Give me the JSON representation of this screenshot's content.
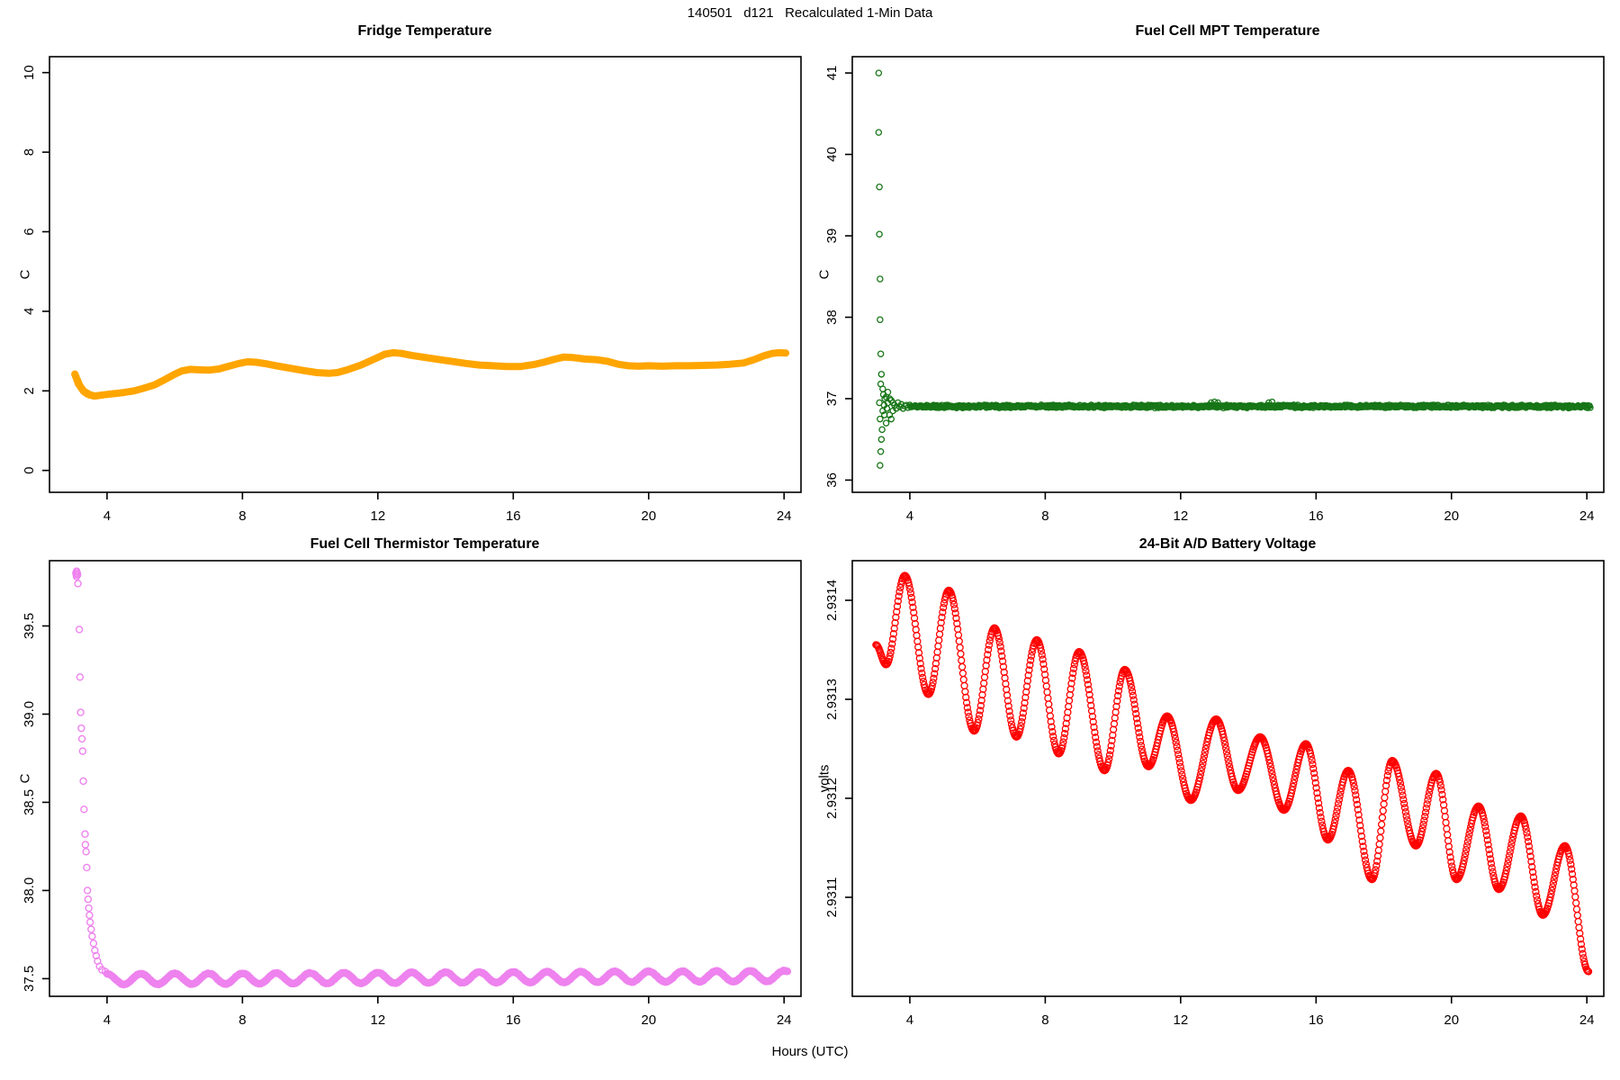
{
  "figure": {
    "title": "140501   d121   Recalculated 1-Min Data",
    "xlabel": "Hours (UTC)",
    "background": "#ffffff",
    "axis_color": "#000000"
  },
  "chart_data": [
    {
      "id": "fridge",
      "type": "line",
      "title": "Fridge Temperature",
      "ylabel": "C",
      "color": "#FFA500",
      "xlim": [
        2.3,
        24.5
      ],
      "ylim": [
        -0.55,
        10.4
      ],
      "xticks": [
        4,
        8,
        12,
        16,
        20,
        24
      ],
      "xtick_labels": [
        "4",
        "8",
        "12",
        "16",
        "20",
        "24"
      ],
      "yticks": [
        0,
        2,
        4,
        6,
        8,
        10
      ],
      "ytick_labels": [
        "0",
        "2",
        "4",
        "6",
        "8",
        "10"
      ],
      "series": [
        {
          "kind": "polyline",
          "points": [
            [
              3.05,
              2.42
            ],
            [
              3.15,
              2.18
            ],
            [
              3.3,
              2.0
            ],
            [
              3.5,
              1.9
            ],
            [
              3.65,
              1.87
            ],
            [
              3.9,
              1.9
            ],
            [
              4.2,
              1.93
            ],
            [
              4.5,
              1.96
            ],
            [
              4.8,
              2.0
            ],
            [
              5.1,
              2.07
            ],
            [
              5.4,
              2.15
            ],
            [
              5.7,
              2.28
            ],
            [
              6.0,
              2.42
            ],
            [
              6.2,
              2.5
            ],
            [
              6.45,
              2.54
            ],
            [
              6.7,
              2.53
            ],
            [
              7.0,
              2.52
            ],
            [
              7.3,
              2.55
            ],
            [
              7.6,
              2.62
            ],
            [
              7.9,
              2.69
            ],
            [
              8.15,
              2.73
            ],
            [
              8.4,
              2.72
            ],
            [
              8.7,
              2.68
            ],
            [
              9.0,
              2.63
            ],
            [
              9.4,
              2.57
            ],
            [
              9.8,
              2.51
            ],
            [
              10.2,
              2.46
            ],
            [
              10.55,
              2.44
            ],
            [
              10.8,
              2.46
            ],
            [
              11.1,
              2.53
            ],
            [
              11.5,
              2.65
            ],
            [
              11.9,
              2.8
            ],
            [
              12.2,
              2.92
            ],
            [
              12.45,
              2.96
            ],
            [
              12.7,
              2.94
            ],
            [
              13.0,
              2.89
            ],
            [
              13.4,
              2.84
            ],
            [
              13.8,
              2.79
            ],
            [
              14.2,
              2.74
            ],
            [
              14.6,
              2.69
            ],
            [
              15.0,
              2.65
            ],
            [
              15.4,
              2.63
            ],
            [
              15.8,
              2.61
            ],
            [
              16.2,
              2.61
            ],
            [
              16.6,
              2.66
            ],
            [
              16.9,
              2.72
            ],
            [
              17.2,
              2.79
            ],
            [
              17.5,
              2.85
            ],
            [
              17.75,
              2.84
            ],
            [
              18.1,
              2.8
            ],
            [
              18.5,
              2.78
            ],
            [
              18.8,
              2.74
            ],
            [
              19.1,
              2.67
            ],
            [
              19.4,
              2.63
            ],
            [
              19.7,
              2.62
            ],
            [
              20.0,
              2.63
            ],
            [
              20.4,
              2.62
            ],
            [
              20.8,
              2.63
            ],
            [
              21.2,
              2.63
            ],
            [
              21.6,
              2.64
            ],
            [
              22.0,
              2.65
            ],
            [
              22.4,
              2.67
            ],
            [
              22.8,
              2.7
            ],
            [
              23.1,
              2.78
            ],
            [
              23.4,
              2.88
            ],
            [
              23.65,
              2.94
            ],
            [
              23.85,
              2.96
            ],
            [
              24.05,
              2.95
            ]
          ]
        },
        {
          "kind": "points",
          "open": true,
          "points": [
            [
              3.05,
              2.42
            ],
            [
              3.07,
              2.38
            ],
            [
              3.09,
              2.34
            ],
            [
              3.12,
              2.28
            ],
            [
              3.15,
              2.22
            ],
            [
              3.18,
              2.16
            ],
            [
              3.22,
              2.1
            ],
            [
              3.26,
              2.05
            ],
            [
              3.3,
              2.0
            ],
            [
              3.35,
              1.96
            ],
            [
              3.42,
              1.92
            ],
            [
              3.5,
              1.89
            ],
            [
              3.6,
              1.87
            ]
          ]
        }
      ]
    },
    {
      "id": "mpt",
      "type": "scatter",
      "title": "Fuel Cell MPT Temperature",
      "ylabel": "C",
      "color": "#167516",
      "xlim": [
        2.3,
        24.5
      ],
      "ylim": [
        35.85,
        41.2
      ],
      "xticks": [
        4,
        8,
        12,
        16,
        20,
        24
      ],
      "xtick_labels": [
        "4",
        "8",
        "12",
        "16",
        "20",
        "24"
      ],
      "yticks": [
        36,
        37,
        38,
        39,
        40,
        41
      ],
      "ytick_labels": [
        "36",
        "37",
        "38",
        "39",
        "40",
        "41"
      ],
      "series": [
        {
          "kind": "points",
          "open": true,
          "points": [
            [
              3.08,
              41.0
            ],
            [
              3.08,
              40.27
            ],
            [
              3.1,
              39.6
            ],
            [
              3.1,
              39.02
            ],
            [
              3.12,
              38.47
            ],
            [
              3.12,
              37.97
            ],
            [
              3.14,
              37.55
            ],
            [
              3.16,
              37.3
            ],
            [
              3.14,
              37.18
            ],
            [
              3.2,
              37.12
            ],
            [
              3.22,
              37.05
            ],
            [
              3.1,
              36.95
            ],
            [
              3.12,
              36.75
            ],
            [
              3.18,
              36.62
            ],
            [
              3.16,
              36.5
            ],
            [
              3.14,
              36.35
            ],
            [
              3.12,
              36.18
            ],
            [
              3.2,
              36.85
            ],
            [
              3.24,
              36.92
            ],
            [
              3.26,
              37.0
            ],
            [
              3.25,
              36.8
            ],
            [
              3.3,
              36.7
            ],
            [
              3.3,
              37.02
            ],
            [
              3.32,
              36.88
            ],
            [
              3.35,
              36.95
            ],
            [
              3.35,
              37.08
            ],
            [
              3.4,
              36.8
            ],
            [
              3.4,
              37.0
            ],
            [
              3.45,
              36.75
            ],
            [
              3.45,
              36.98
            ],
            [
              3.5,
              36.95
            ],
            [
              3.5,
              36.85
            ],
            [
              3.55,
              36.92
            ],
            [
              3.6,
              36.88
            ],
            [
              3.65,
              36.95
            ],
            [
              3.7,
              36.9
            ],
            [
              3.75,
              36.93
            ],
            [
              3.8,
              36.88
            ],
            [
              3.85,
              36.91
            ],
            [
              3.9,
              36.92
            ],
            [
              3.95,
              36.89
            ],
            [
              12.9,
              36.95
            ],
            [
              13.0,
              36.96
            ],
            [
              13.1,
              36.95
            ],
            [
              14.6,
              36.95
            ],
            [
              14.7,
              36.96
            ]
          ]
        },
        {
          "kind": "band",
          "x0": 4.0,
          "x1": 24.1,
          "step": 0.02,
          "y": 36.905,
          "noise": 0.02
        }
      ]
    },
    {
      "id": "thermistor",
      "type": "scatter",
      "title": "Fuel Cell Thermistor Temperature",
      "ylabel": "C",
      "color": "#EE82EE",
      "xlim": [
        2.3,
        24.5
      ],
      "ylim": [
        37.4,
        39.87
      ],
      "xticks": [
        4,
        8,
        12,
        16,
        20,
        24
      ],
      "xtick_labels": [
        "4",
        "8",
        "12",
        "16",
        "20",
        "24"
      ],
      "yticks": [
        37.5,
        38.0,
        38.5,
        39.0,
        39.5
      ],
      "ytick_labels": [
        "37.5",
        "38.0",
        "38.5",
        "39.0",
        "39.5"
      ],
      "series": [
        {
          "kind": "points",
          "open": true,
          "points": [
            [
              3.08,
              39.8
            ],
            [
              3.1,
              39.81
            ],
            [
              3.12,
              39.8
            ],
            [
              3.09,
              39.79
            ],
            [
              3.11,
              39.8
            ],
            [
              3.13,
              39.79
            ],
            [
              3.1,
              39.78
            ],
            [
              3.12,
              39.8
            ],
            [
              3.14,
              39.74
            ],
            [
              3.18,
              39.48
            ],
            [
              3.2,
              39.21
            ],
            [
              3.22,
              39.01
            ],
            [
              3.24,
              38.92
            ],
            [
              3.26,
              38.86
            ],
            [
              3.28,
              38.79
            ],
            [
              3.3,
              38.62
            ],
            [
              3.32,
              38.46
            ],
            [
              3.35,
              38.32
            ],
            [
              3.36,
              38.26
            ],
            [
              3.38,
              38.22
            ],
            [
              3.4,
              38.13
            ],
            [
              3.42,
              38.0
            ],
            [
              3.44,
              37.95
            ],
            [
              3.46,
              37.9
            ],
            [
              3.48,
              37.86
            ],
            [
              3.5,
              37.82
            ],
            [
              3.53,
              37.78
            ],
            [
              3.56,
              37.74
            ],
            [
              3.6,
              37.7
            ],
            [
              3.64,
              37.66
            ],
            [
              3.68,
              37.63
            ],
            [
              3.72,
              37.6
            ],
            [
              3.78,
              37.57
            ],
            [
              3.85,
              37.55
            ],
            [
              3.95,
              37.54
            ]
          ]
        },
        {
          "kind": "wave",
          "x0": 4.0,
          "x1": 24.1,
          "step": 0.02,
          "base": 37.497,
          "amplitude": 0.03,
          "period": 1.0,
          "trend": 0.0009,
          "jitter": 0.002
        }
      ]
    },
    {
      "id": "battery",
      "type": "scatter",
      "title": "24-Bit A/D Battery Voltage",
      "ylabel": "volts",
      "color": "#FF0000",
      "xlim": [
        2.3,
        24.5
      ],
      "ylim": [
        2.931,
        2.93144
      ],
      "xticks": [
        4,
        8,
        12,
        16,
        20,
        24
      ],
      "xtick_labels": [
        "4",
        "8",
        "12",
        "16",
        "20",
        "24"
      ],
      "yticks": [
        2.9311,
        2.9312,
        2.9313,
        2.9314
      ],
      "ytick_labels": [
        "2.9311",
        "2.9312",
        "2.9313",
        "2.9314"
      ],
      "series": [
        {
          "kind": "extrema_chain",
          "step": 0.022,
          "points": [
            [
              3.0,
              2.931355
            ],
            [
              3.3,
              2.931335
            ],
            [
              3.85,
              2.931425
            ],
            [
              4.55,
              2.931305
            ],
            [
              5.15,
              2.93141
            ],
            [
              5.9,
              2.931268
            ],
            [
              6.5,
              2.931372
            ],
            [
              7.15,
              2.931262
            ],
            [
              7.75,
              2.93136
            ],
            [
              8.4,
              2.931245
            ],
            [
              9.0,
              2.931348
            ],
            [
              9.75,
              2.931228
            ],
            [
              10.35,
              2.93133
            ],
            [
              11.05,
              2.931232
            ],
            [
              11.6,
              2.931283
            ],
            [
              12.3,
              2.931198
            ],
            [
              13.05,
              2.93128
            ],
            [
              13.7,
              2.931208
            ],
            [
              14.35,
              2.931262
            ],
            [
              15.05,
              2.931188
            ],
            [
              15.7,
              2.931255
            ],
            [
              16.35,
              2.931158
            ],
            [
              16.95,
              2.931228
            ],
            [
              17.65,
              2.931118
            ],
            [
              18.25,
              2.931238
            ],
            [
              18.95,
              2.931152
            ],
            [
              19.55,
              2.931225
            ],
            [
              20.15,
              2.931118
            ],
            [
              20.8,
              2.931192
            ],
            [
              21.4,
              2.931108
            ],
            [
              22.05,
              2.931182
            ],
            [
              22.7,
              2.931082
            ],
            [
              23.35,
              2.931152
            ],
            [
              24.05,
              2.931025
            ]
          ]
        }
      ]
    }
  ]
}
